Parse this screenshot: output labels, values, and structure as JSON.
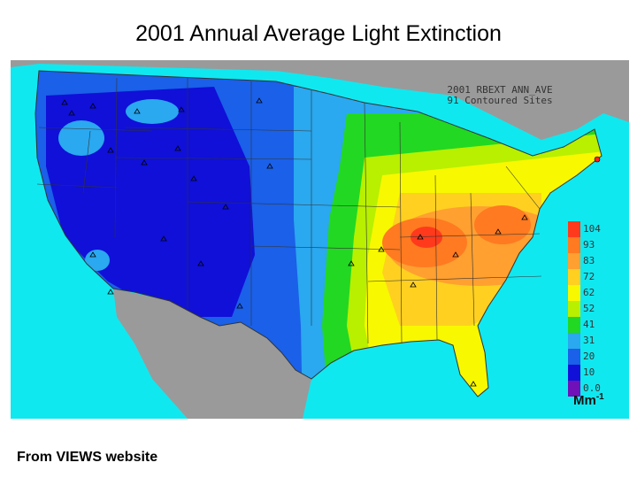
{
  "title": "2001 Annual Average Light Extinction",
  "map": {
    "inset_title_line1": "2001 RBEXT ANN_AVE",
    "inset_title_line2": "91 Contoured Sites",
    "colors": {
      "ocean": "#10e8f0",
      "land_outside": "#9a9a9a",
      "border_lines": "#333333",
      "site_marker": "#000000",
      "highlight_marker": "#ff2020"
    }
  },
  "legend": {
    "entries": [
      {
        "label": "104",
        "color": "#ff3a1c"
      },
      {
        "label": "93",
        "color": "#ff7a20"
      },
      {
        "label": "83",
        "color": "#ffa030"
      },
      {
        "label": "72",
        "color": "#ffd020"
      },
      {
        "label": "62",
        "color": "#f8f800"
      },
      {
        "label": "52",
        "color": "#b8f000"
      },
      {
        "label": "41",
        "color": "#22d822"
      },
      {
        "label": "31",
        "color": "#2aa8f0"
      },
      {
        "label": "20",
        "color": "#1a60e8"
      },
      {
        "label": "10",
        "color": "#1010d8"
      },
      {
        "label": "0.0",
        "color": "#7010b8"
      }
    ],
    "unit": "Mm",
    "unit_exponent": "-1"
  },
  "source_credit": "From VIEWS website"
}
